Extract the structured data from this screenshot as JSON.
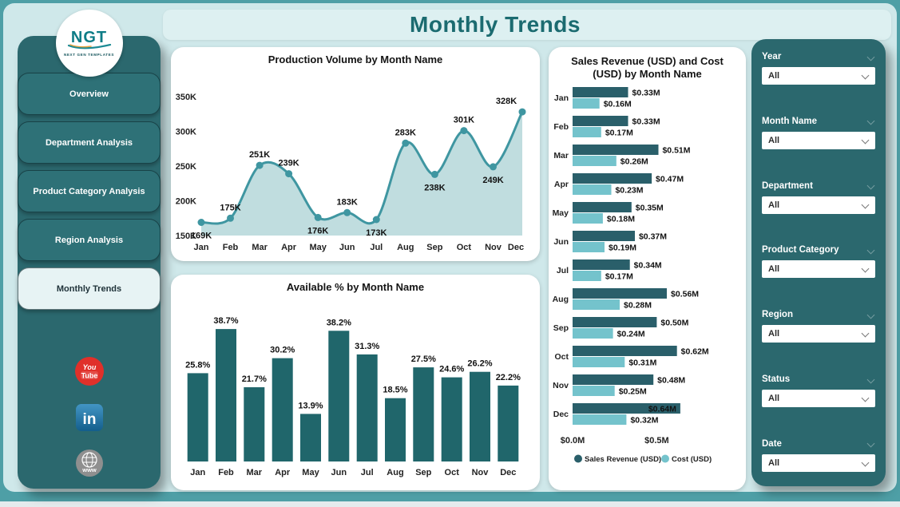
{
  "header": {
    "title": "Monthly Trends"
  },
  "sidebar": {
    "logo": {
      "text": "NGT",
      "subtext": "NEXT GEN TEMPLATES"
    },
    "items": [
      {
        "label": "Overview",
        "active": false
      },
      {
        "label": "Department Analysis",
        "active": false
      },
      {
        "label": "Product Category Analysis",
        "active": false
      },
      {
        "label": "Region Analysis",
        "active": false
      },
      {
        "label": "Monthly Trends",
        "active": true
      }
    ],
    "social_icons": [
      "youtube-icon",
      "linkedin-icon",
      "website-globe-icon"
    ]
  },
  "filters": [
    {
      "label": "Year",
      "value": "All"
    },
    {
      "label": "Month Name",
      "value": "All"
    },
    {
      "label": "Department",
      "value": "All"
    },
    {
      "label": "Product Category",
      "value": "All"
    },
    {
      "label": "Region",
      "value": "All"
    },
    {
      "label": "Status",
      "value": "All"
    },
    {
      "label": "Date",
      "value": "All"
    }
  ],
  "chart_data": [
    {
      "type": "area",
      "title": "Production Volume by Month Name",
      "categories": [
        "Jan",
        "Feb",
        "Mar",
        "Apr",
        "May",
        "Jun",
        "Jul",
        "Aug",
        "Sep",
        "Oct",
        "Nov",
        "Dec"
      ],
      "values": [
        169,
        175,
        251,
        239,
        176,
        183,
        173,
        283,
        238,
        301,
        249,
        328
      ],
      "value_labels": [
        "169K",
        "175K",
        "251K",
        "239K",
        "176K",
        "183K",
        "173K",
        "283K",
        "238K",
        "301K",
        "249K",
        "328K"
      ],
      "label_side": [
        "below",
        "above",
        "above",
        "above",
        "below",
        "above",
        "below",
        "above",
        "below",
        "above",
        "below",
        "above"
      ],
      "y_tick_values": [
        350,
        300,
        250,
        200,
        150
      ],
      "y_tick_labels": [
        "350K",
        "300K",
        "250K",
        "200K",
        "150K"
      ],
      "ylim": [
        150,
        350
      ],
      "xlabel": "",
      "ylabel": "",
      "grid": false,
      "colors": {
        "line": "#3f96a1",
        "area": "#b9d9dc",
        "marker": "#3f96a1"
      }
    },
    {
      "type": "bar",
      "title": "Available % by Month Name",
      "categories": [
        "Jan",
        "Feb",
        "Mar",
        "Apr",
        "May",
        "Jun",
        "Jul",
        "Aug",
        "Sep",
        "Oct",
        "Nov",
        "Dec"
      ],
      "values": [
        25.8,
        38.7,
        21.7,
        30.2,
        13.9,
        38.2,
        31.3,
        18.5,
        27.5,
        24.6,
        26.2,
        22.2
      ],
      "value_labels": [
        "25.8%",
        "38.7%",
        "21.7%",
        "30.2%",
        "13.9%",
        "38.2%",
        "31.3%",
        "18.5%",
        "27.5%",
        "24.6%",
        "26.2%",
        "22.2%"
      ],
      "ylim": [
        0,
        42
      ],
      "xlabel": "",
      "ylabel": "",
      "grid": false,
      "color": "#20666b"
    },
    {
      "type": "horizontal-grouped-bar",
      "title": "Sales Revenue (USD) and Cost (USD) by Month Name",
      "categories": [
        "Jan",
        "Feb",
        "Mar",
        "Apr",
        "May",
        "Jun",
        "Jul",
        "Aug",
        "Sep",
        "Oct",
        "Nov",
        "Dec"
      ],
      "series": [
        {
          "name": "Sales Revenue (USD)",
          "color": "#2a5f6a",
          "values": [
            0.33,
            0.33,
            0.51,
            0.47,
            0.35,
            0.37,
            0.34,
            0.56,
            0.5,
            0.62,
            0.48,
            0.64
          ],
          "labels": [
            "$0.33M",
            "$0.33M",
            "$0.51M",
            "$0.47M",
            "$0.35M",
            "$0.37M",
            "$0.34M",
            "$0.56M",
            "$0.50M",
            "$0.62M",
            "$0.48M",
            "$0.64M"
          ]
        },
        {
          "name": "Cost (USD)",
          "color": "#74c3cc",
          "values": [
            0.16,
            0.17,
            0.26,
            0.23,
            0.18,
            0.19,
            0.17,
            0.28,
            0.24,
            0.31,
            0.25,
            0.32
          ],
          "labels": [
            "$0.16M",
            "$0.17M",
            "$0.26M",
            "$0.23M",
            "$0.18M",
            "$0.19M",
            "$0.17M",
            "$0.28M",
            "$0.24M",
            "$0.31M",
            "$0.25M",
            "$0.32M"
          ]
        }
      ],
      "x_tick_labels": [
        "$0.0M",
        "$0.5M"
      ],
      "x_tick_values": [
        0,
        0.5
      ],
      "xlim": [
        0,
        0.93
      ],
      "grid": false,
      "legend_position": "bottom"
    }
  ]
}
